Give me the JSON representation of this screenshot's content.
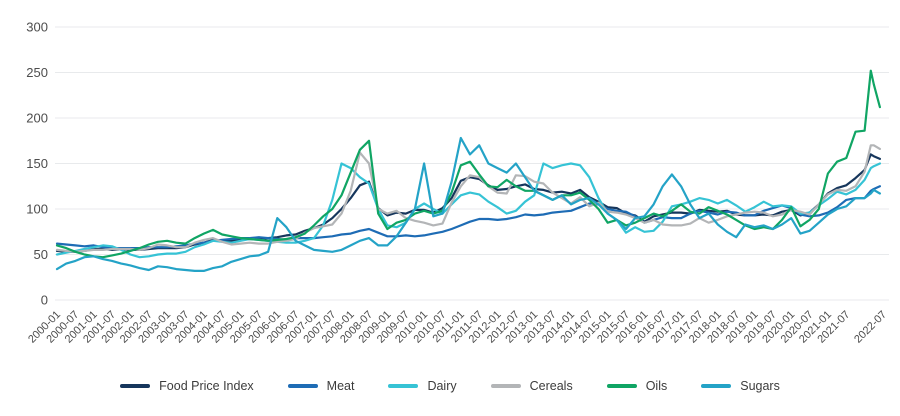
{
  "chart_data": {
    "type": "line",
    "title": "",
    "xlabel": "",
    "ylabel": "",
    "ylim": [
      0,
      300
    ],
    "grid": "horizontal",
    "legend_position": "bottom-center",
    "y_ticks": [
      0,
      50,
      100,
      150,
      200,
      250,
      300
    ],
    "x_tick_labels": [
      "2000-01",
      "2000-07",
      "2001-01",
      "2001-07",
      "2002-01",
      "2002-07",
      "2003-01",
      "2003-07",
      "2004-01",
      "2004-07",
      "2005-01",
      "2005-07",
      "2006-01",
      "2006-07",
      "2007-01",
      "2007-07",
      "2008-01",
      "2008-07",
      "2009-01",
      "2009-07",
      "2010-01",
      "2010-07",
      "2011-01",
      "2011-07",
      "2012-01",
      "2012-07",
      "2013-01",
      "2013-07",
      "2014-01",
      "2014-07",
      "2015-01",
      "2015-07",
      "2016-01",
      "2016-07",
      "2017-01",
      "2017-07",
      "2018-01",
      "2018-07",
      "2019-01",
      "2019-07",
      "2020-01",
      "2020-07",
      "2021-01",
      "2021-07",
      "2022-07"
    ],
    "x": [
      "2000-01",
      "2000-04",
      "2000-07",
      "2000-10",
      "2001-01",
      "2001-04",
      "2001-07",
      "2001-10",
      "2002-01",
      "2002-04",
      "2002-07",
      "2002-10",
      "2003-01",
      "2003-04",
      "2003-07",
      "2003-10",
      "2004-01",
      "2004-04",
      "2004-07",
      "2004-10",
      "2005-01",
      "2005-04",
      "2005-07",
      "2005-10",
      "2006-01",
      "2006-04",
      "2006-07",
      "2006-10",
      "2007-01",
      "2007-04",
      "2007-07",
      "2007-10",
      "2008-01",
      "2008-04",
      "2008-07",
      "2008-10",
      "2009-01",
      "2009-04",
      "2009-07",
      "2009-10",
      "2010-01",
      "2010-04",
      "2010-07",
      "2010-10",
      "2011-01",
      "2011-04",
      "2011-07",
      "2011-10",
      "2012-01",
      "2012-04",
      "2012-07",
      "2012-10",
      "2013-01",
      "2013-04",
      "2013-07",
      "2013-10",
      "2014-01",
      "2014-04",
      "2014-07",
      "2014-10",
      "2015-01",
      "2015-04",
      "2015-07",
      "2015-10",
      "2016-01",
      "2016-04",
      "2016-07",
      "2016-10",
      "2017-01",
      "2017-04",
      "2017-07",
      "2017-10",
      "2018-01",
      "2018-04",
      "2018-07",
      "2018-10",
      "2019-01",
      "2019-04",
      "2019-07",
      "2019-10",
      "2020-01",
      "2020-04",
      "2020-07",
      "2020-10",
      "2021-01",
      "2021-04",
      "2021-07",
      "2021-10",
      "2022-01",
      "2022-03",
      "2022-04",
      "2022-06"
    ],
    "series": [
      {
        "name": "Food Price Index",
        "color": "#16365c",
        "values": [
          54,
          53,
          53,
          54,
          56,
          56,
          55,
          56,
          55,
          55,
          56,
          57,
          57,
          57,
          58,
          61,
          63,
          66,
          65,
          65,
          66,
          67,
          67,
          68,
          69,
          71,
          72,
          76,
          79,
          83,
          90,
          100,
          112,
          126,
          130,
          101,
          93,
          96,
          95,
          99,
          99,
          96,
          101,
          112,
          131,
          135,
          133,
          126,
          121,
          122,
          125,
          127,
          122,
          121,
          118,
          119,
          117,
          121,
          113,
          108,
          102,
          101,
          95,
          93,
          86,
          92,
          94,
          96,
          96,
          95,
          99,
          98,
          97,
          98,
          94,
          93,
          93,
          94,
          93,
          97,
          99,
          93,
          96,
          105,
          117,
          123,
          126,
          134,
          143,
          160,
          158,
          155
        ]
      },
      {
        "name": "Meat",
        "color": "#1e6cb5",
        "values": [
          62,
          61,
          60,
          59,
          60,
          58,
          57,
          57,
          57,
          57,
          58,
          58,
          58,
          59,
          60,
          62,
          63,
          65,
          66,
          67,
          68,
          68,
          69,
          68,
          67,
          66,
          68,
          68,
          68,
          69,
          70,
          72,
          73,
          76,
          78,
          74,
          70,
          70,
          71,
          70,
          71,
          73,
          75,
          78,
          82,
          86,
          89,
          89,
          88,
          89,
          91,
          94,
          93,
          94,
          96,
          97,
          98,
          102,
          106,
          105,
          100,
          98,
          97,
          92,
          85,
          88,
          91,
          90,
          90,
          95,
          98,
          96,
          94,
          97,
          96,
          93,
          93,
          98,
          101,
          104,
          101,
          94,
          92,
          93,
          96,
          102,
          110,
          112,
          112,
          120,
          122,
          125
        ]
      },
      {
        "name": "Dairy",
        "color": "#36c3d5",
        "values": [
          50,
          52,
          54,
          56,
          58,
          60,
          59,
          55,
          50,
          47,
          48,
          50,
          51,
          51,
          53,
          58,
          61,
          65,
          64,
          63,
          65,
          67,
          66,
          65,
          64,
          63,
          63,
          65,
          68,
          82,
          110,
          150,
          145,
          135,
          128,
          100,
          82,
          80,
          85,
          100,
          106,
          100,
          95,
          105,
          115,
          118,
          116,
          108,
          102,
          95,
          98,
          108,
          115,
          150,
          145,
          148,
          150,
          148,
          135,
          112,
          95,
          88,
          74,
          80,
          75,
          76,
          86,
          103,
          105,
          108,
          112,
          110,
          106,
          110,
          104,
          97,
          102,
          108,
          103,
          104,
          103,
          95,
          96,
          104,
          111,
          119,
          116,
          121,
          132,
          145,
          147,
          150
        ]
      },
      {
        "name": "Cereals",
        "color": "#b3b5b7",
        "values": [
          55,
          54,
          53,
          54,
          55,
          55,
          56,
          56,
          56,
          55,
          57,
          61,
          60,
          58,
          58,
          63,
          66,
          68,
          64,
          61,
          62,
          63,
          62,
          62,
          64,
          65,
          67,
          74,
          79,
          81,
          83,
          95,
          120,
          162,
          150,
          100,
          95,
          98,
          90,
          87,
          85,
          82,
          84,
          107,
          125,
          137,
          135,
          125,
          118,
          117,
          137,
          136,
          130,
          128,
          118,
          112,
          106,
          113,
          103,
          107,
          97,
          96,
          94,
          90,
          85,
          88,
          83,
          82,
          82,
          84,
          90,
          85,
          88,
          92,
          94,
          96,
          97,
          96,
          92,
          94,
          99,
          97,
          94,
          105,
          116,
          121,
          120,
          125,
          141,
          170,
          170,
          166
        ]
      },
      {
        "name": "Oils",
        "color": "#10a564",
        "values": [
          60,
          57,
          53,
          50,
          48,
          47,
          49,
          51,
          54,
          57,
          61,
          64,
          65,
          63,
          62,
          68,
          73,
          77,
          72,
          70,
          68,
          67,
          66,
          65,
          66,
          67,
          69,
          73,
          82,
          92,
          100,
          115,
          140,
          165,
          175,
          95,
          78,
          85,
          88,
          95,
          98,
          95,
          98,
          118,
          148,
          152,
          138,
          125,
          124,
          132,
          125,
          120,
          120,
          115,
          110,
          115,
          115,
          118,
          110,
          100,
          85,
          88,
          82,
          85,
          90,
          95,
          92,
          98,
          105,
          97,
          95,
          102,
          98,
          94,
          88,
          82,
          78,
          80,
          78,
          88,
          102,
          81,
          88,
          100,
          139,
          152,
          156,
          185,
          186,
          252,
          237,
          212
        ]
      },
      {
        "name": "Sugars",
        "color": "#24a3c7",
        "values": [
          34,
          40,
          43,
          47,
          48,
          45,
          43,
          40,
          38,
          35,
          33,
          37,
          36,
          34,
          33,
          32,
          32,
          35,
          37,
          42,
          45,
          48,
          49,
          53,
          90,
          80,
          65,
          60,
          55,
          54,
          53,
          55,
          60,
          65,
          68,
          60,
          60,
          70,
          85,
          100,
          150,
          92,
          95,
          130,
          178,
          160,
          170,
          150,
          145,
          140,
          150,
          135,
          120,
          115,
          110,
          115,
          105,
          110,
          112,
          105,
          95,
          88,
          78,
          90,
          92,
          105,
          125,
          138,
          125,
          105,
          90,
          95,
          83,
          75,
          69,
          83,
          80,
          82,
          78,
          83,
          90,
          73,
          76,
          85,
          94,
          100,
          103,
          112,
          112,
          117,
          121,
          117
        ]
      }
    ],
    "style": {
      "grid_color": "#e8eaec",
      "tick_color": "#4d4d4d",
      "background": "#ffffff",
      "line_width": 2.2
    }
  }
}
